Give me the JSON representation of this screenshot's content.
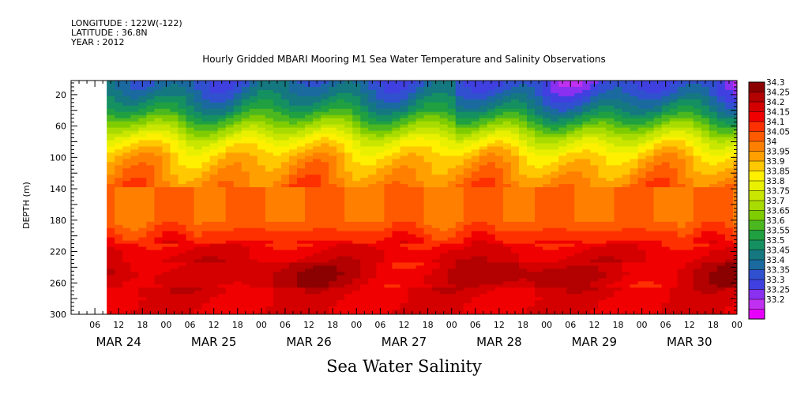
{
  "header": {
    "longitude": "LONGITUDE : 122W(-122)",
    "latitude": "LATITUDE : 36.8N",
    "year": "YEAR : 2012"
  },
  "chart_data": {
    "type": "heatmap",
    "title": "Hourly Gridded MBARI Mooring M1 Sea Water Temperature and Salinity Observations",
    "subtitle": "Sea Water Salinity",
    "ylabel": "DEPTH (m)",
    "xlabel": "",
    "y_ticks": [
      "20",
      "60",
      "100",
      "140",
      "180",
      "220",
      "260",
      "300"
    ],
    "y_tick_values": [
      20,
      60,
      100,
      140,
      180,
      220,
      260,
      300
    ],
    "ylim": [
      300,
      2
    ],
    "x_hour_ticks": [
      "06",
      "12",
      "18",
      "00",
      "06",
      "12",
      "18",
      "00",
      "06",
      "12",
      "18",
      "00",
      "06",
      "12",
      "18",
      "00",
      "06",
      "12",
      "18",
      "00",
      "06",
      "12",
      "18",
      "00",
      "06",
      "12",
      "18",
      "00"
    ],
    "x_date_labels": [
      "MAR 24",
      "MAR 25",
      "MAR 26",
      "MAR 27",
      "MAR 28",
      "MAR 29",
      "MAR 30"
    ],
    "xlim": [
      "2012-03-24 00:00",
      "2012-03-31 00:00"
    ],
    "data_start": "2012-03-24 09:00",
    "colorbar_levels": [
      "34.3",
      "34.25",
      "34.2",
      "34.15",
      "34.1",
      "34.05",
      "34",
      "33.95",
      "33.9",
      "33.85",
      "33.8",
      "33.75",
      "33.7",
      "33.65",
      "33.6",
      "33.55",
      "33.5",
      "33.45",
      "33.4",
      "33.35",
      "33.3",
      "33.25",
      "33.2"
    ],
    "colorbar_colors": [
      "#8b0000",
      "#b30000",
      "#d40000",
      "#f00000",
      "#ff3000",
      "#ff5a00",
      "#ff8000",
      "#ffa000",
      "#ffc800",
      "#fff000",
      "#e8f000",
      "#c8e600",
      "#a8dc00",
      "#7fcc00",
      "#4cb820",
      "#20a040",
      "#159060",
      "#157880",
      "#1a6aa0",
      "#3050d0",
      "#4040e0",
      "#8a30f0",
      "#c030f0",
      "#e800ff"
    ],
    "depth_profile": [
      {
        "depth": 5,
        "salinity": 33.4
      },
      {
        "depth": 20,
        "salinity": 33.45
      },
      {
        "depth": 40,
        "salinity": 33.55
      },
      {
        "depth": 60,
        "salinity": 33.7
      },
      {
        "depth": 80,
        "salinity": 33.85
      },
      {
        "depth": 100,
        "salinity": 33.95
      },
      {
        "depth": 120,
        "salinity": 34.0
      },
      {
        "depth": 140,
        "salinity": 34.05
      },
      {
        "depth": 180,
        "salinity": 34.05
      },
      {
        "depth": 220,
        "salinity": 34.2
      },
      {
        "depth": 250,
        "salinity": 34.25
      },
      {
        "depth": 280,
        "salinity": 34.2
      },
      {
        "depth": 300,
        "salinity": 34.2
      }
    ]
  }
}
